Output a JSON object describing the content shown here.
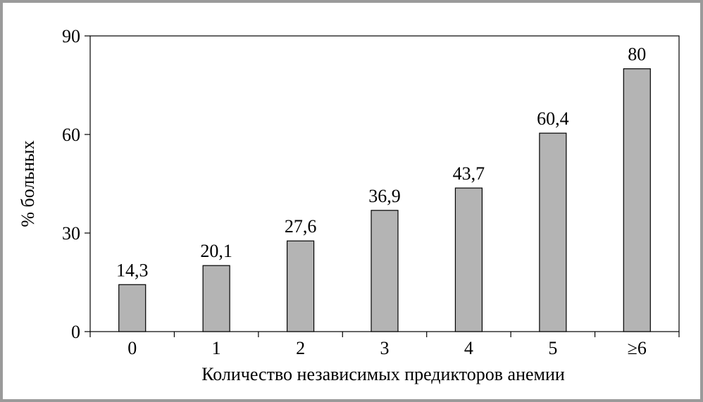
{
  "chart_data": {
    "type": "bar",
    "title": "",
    "xlabel": "Количество независимых предикторов анемии",
    "ylabel": "% больных",
    "categories": [
      "0",
      "1",
      "2",
      "3",
      "4",
      "5",
      "≥6"
    ],
    "values": [
      14.3,
      20.1,
      27.6,
      36.9,
      43.7,
      60.4,
      80
    ],
    "value_labels": [
      "14,3",
      "20,1",
      "27,6",
      "36,9",
      "43,7",
      "60,4",
      "80"
    ],
    "ylim": [
      0,
      90
    ],
    "yticks": [
      0,
      30,
      60,
      90
    ],
    "ytick_labels": [
      "0",
      "30",
      "60",
      "90"
    ],
    "grid": false,
    "legend": "none",
    "bar_color": "#b4b4b4",
    "frame_color": "#9a9a9a"
  }
}
